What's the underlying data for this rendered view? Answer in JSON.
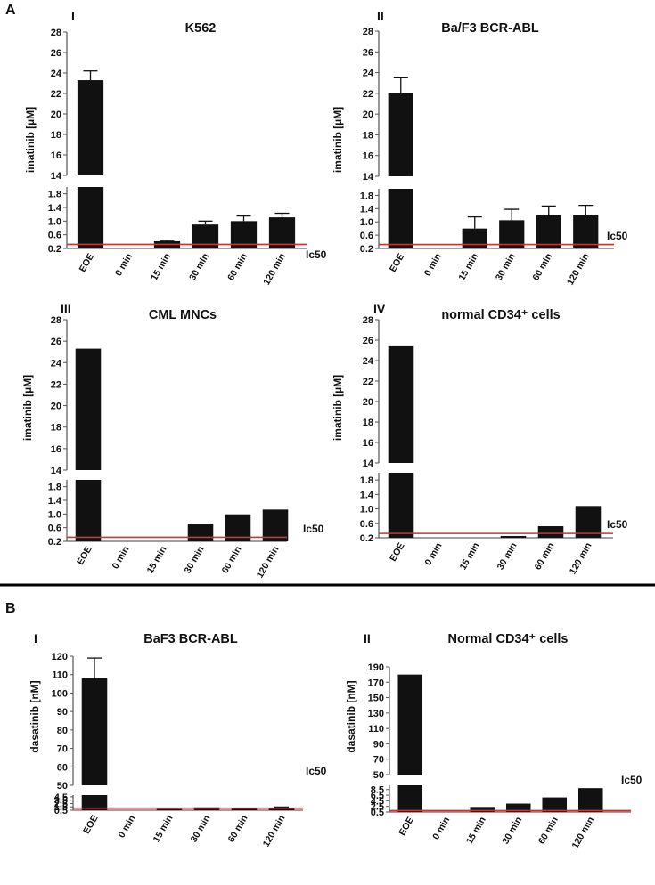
{
  "figure": {
    "panel_labels": [
      "A",
      "B"
    ],
    "ic50_color": "#cc3333",
    "bar_color": "#111111"
  },
  "chart_data": [
    {
      "type": "bar",
      "panel": "A",
      "roman": "I",
      "title": "K562",
      "ylabel": "imatinib [µM]",
      "categories": [
        "EOE",
        "0 min",
        "15 min",
        "30 min",
        "60 min",
        "120 min"
      ],
      "values": [
        23.3,
        0,
        0.41,
        0.9,
        1.0,
        1.11
      ],
      "errors": [
        0.9,
        0,
        0.02,
        0.1,
        0.15,
        0.12
      ],
      "broken_axis": true,
      "lower_ticks": [
        "0.2",
        "0.6",
        "1.0",
        "1.4",
        "1.8"
      ],
      "upper_ticks": [
        "14",
        "16",
        "18",
        "20",
        "22",
        "24",
        "26",
        "28"
      ],
      "lower_range": [
        0.2,
        2.0
      ],
      "upper_range": [
        14,
        28
      ],
      "ic50": {
        "label": "Ic50",
        "value": 0.32
      }
    },
    {
      "type": "bar",
      "panel": "A",
      "roman": "II",
      "title": "Ba/F3 BCR-ABL",
      "ylabel": "imatinib [µM]",
      "categories": [
        "EOE",
        "0 min",
        "15 min",
        "30 min",
        "60 min",
        "120 min"
      ],
      "values": [
        22.0,
        0,
        0.8,
        1.05,
        1.2,
        1.22
      ],
      "errors": [
        1.5,
        0,
        0.35,
        0.33,
        0.28,
        0.28
      ],
      "broken_axis": true,
      "lower_ticks": [
        "0.2",
        "0.6",
        "1.0",
        "1.4",
        "1.8"
      ],
      "upper_ticks": [
        "14",
        "16",
        "18",
        "20",
        "22",
        "24",
        "26",
        "28"
      ],
      "lower_range": [
        0.2,
        2.0
      ],
      "upper_range": [
        14,
        28
      ],
      "ic50": {
        "label": "Ic50",
        "value": 0.32
      }
    },
    {
      "type": "bar",
      "panel": "A",
      "roman": "III",
      "title": "CML MNCs",
      "ylabel": "imatinib [µM]",
      "categories": [
        "EOE",
        "0 min",
        "15 min",
        "30 min",
        "60 min",
        "120 min"
      ],
      "values": [
        25.3,
        0,
        0,
        0.72,
        0.99,
        1.13
      ],
      "errors": [
        0,
        0,
        0,
        0,
        0,
        0
      ],
      "broken_axis": true,
      "lower_ticks": [
        "0.2",
        "0.6",
        "1.0",
        "1.4",
        "1.8"
      ],
      "upper_ticks": [
        "14",
        "16",
        "18",
        "20",
        "22",
        "24",
        "26",
        "28"
      ],
      "lower_range": [
        0.2,
        2.0
      ],
      "upper_range": [
        14,
        28
      ],
      "ic50": {
        "label": "Ic50",
        "value": 0.32
      }
    },
    {
      "type": "bar",
      "panel": "A",
      "roman": "IV",
      "title": "normal CD34⁺ cells",
      "ylabel": "imatinib [µM]",
      "categories": [
        "EOE",
        "0 min",
        "15 min",
        "30 min",
        "60 min",
        "120 min"
      ],
      "values": [
        25.4,
        0,
        0,
        0.25,
        0.52,
        1.08
      ],
      "errors": [
        0,
        0,
        0,
        0,
        0,
        0
      ],
      "broken_axis": true,
      "lower_ticks": [
        "0.2",
        "0.6",
        "1.0",
        "1.4",
        "1.8"
      ],
      "upper_ticks": [
        "14",
        "16",
        "18",
        "20",
        "22",
        "24",
        "26",
        "28"
      ],
      "lower_range": [
        0.2,
        2.0
      ],
      "upper_range": [
        14,
        28
      ],
      "ic50": {
        "label": "Ic50",
        "value": 0.32
      }
    },
    {
      "type": "bar",
      "panel": "B",
      "roman": "I",
      "title": "BaF3 BCR-ABL",
      "ylabel": "dasatinib [nM]",
      "categories": [
        "EOE",
        "0 min",
        "15 min",
        "30 min",
        "60 min",
        "120 min"
      ],
      "values": [
        108,
        0,
        0.85,
        1.35,
        0.9,
        1.2
      ],
      "errors": [
        11,
        0,
        0,
        0,
        0,
        0.25
      ],
      "broken_axis": true,
      "lower_ticks": [
        "0.5",
        "1.5",
        "2.5",
        "3.5",
        "4.5"
      ],
      "upper_ticks": [
        "50",
        "60",
        "70",
        "80",
        "90",
        "100",
        "110",
        "120"
      ],
      "lower_range": [
        0.5,
        5.0
      ],
      "upper_range": [
        50,
        120
      ],
      "ic50": {
        "label": "Ic50",
        "value": 1.1
      }
    },
    {
      "type": "bar",
      "panel": "B",
      "roman": "II",
      "title": "Normal CD34⁺ cells",
      "ylabel": "dasatinib [nM]",
      "categories": [
        "EOE",
        "0 min",
        "15 min",
        "30 min",
        "60 min",
        "120 min"
      ],
      "values": [
        180,
        0,
        2.3,
        3.5,
        5.7,
        9.0
      ],
      "errors": [
        0,
        0,
        0,
        0,
        0,
        0
      ],
      "broken_axis": true,
      "lower_ticks": [
        "0.5",
        "2.5",
        "4.5",
        "6.5",
        "8.5"
      ],
      "upper_ticks": [
        "50",
        "70",
        "90",
        "110",
        "130",
        "150",
        "170",
        "190"
      ],
      "lower_range": [
        0.5,
        10.0
      ],
      "upper_range": [
        50,
        190
      ],
      "ic50": {
        "label": "Ic50",
        "value": 1.0
      }
    }
  ]
}
